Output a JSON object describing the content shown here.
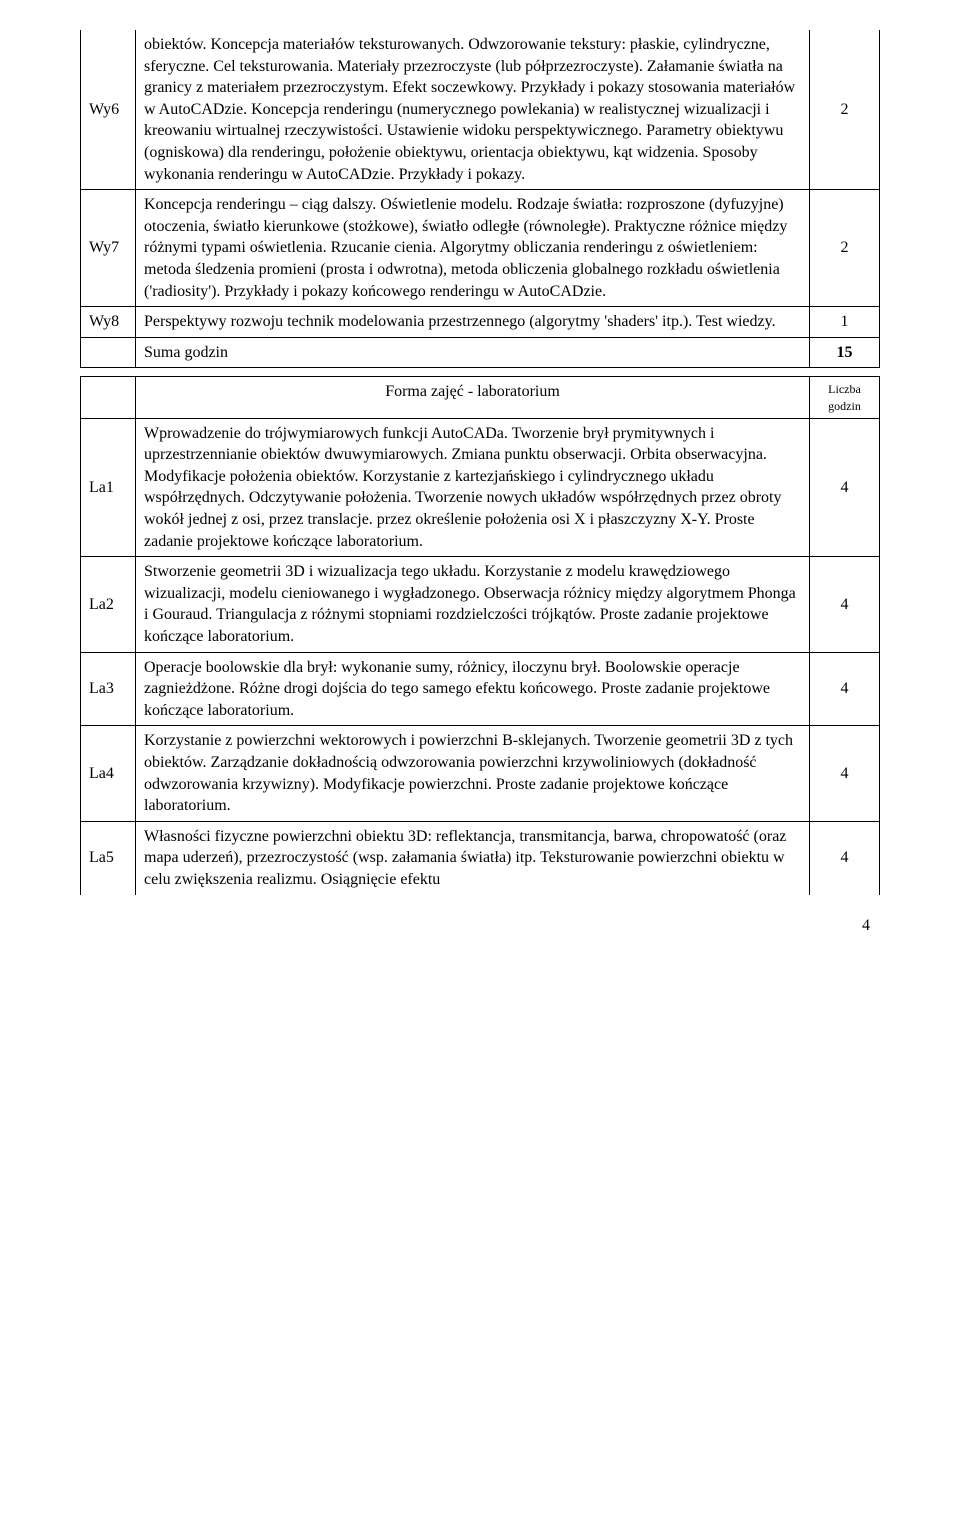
{
  "table1": {
    "rows": [
      {
        "label": "Wy6",
        "content": "obiektów. Koncepcja materiałów teksturowanych. Odwzorowanie tekstury: płaskie, cylindryczne, sferyczne. Cel teksturowania. Materiały przezroczyste (lub półprzezroczyste). Załamanie światła na granicy z materiałem przezroczystym. Efekt soczewkowy. Przykłady i pokazy stosowania materiałów w AutoCADzie.\nKoncepcja renderingu (numerycznego powlekania) w realistycznej wizualizacji i kreowaniu wirtualnej rzeczywistości. Ustawienie widoku perspektywicznego. Parametry obiektywu (ogniskowa) dla renderingu, położenie obiektywu, orientacja obiektywu, kąt widzenia. Sposoby wykonania renderingu w AutoCADzie. Przykłady i pokazy.",
        "hours": "2"
      },
      {
        "label": "Wy7",
        "content": "Koncepcja renderingu – ciąg dalszy. Oświetlenie modelu. Rodzaje światła: rozproszone (dyfuzyjne) otoczenia, światło kierunkowe (stożkowe), światło odległe (równoległe). Praktyczne różnice między różnymi typami oświetlenia. Rzucanie cienia. Algorytmy obliczania renderingu z oświetleniem: metoda śledzenia promieni (prosta i odwrotna), metoda obliczenia globalnego rozkładu oświetlenia ('radiosity'). Przykłady i pokazy końcowego renderingu w AutoCADzie.",
        "hours": "2"
      },
      {
        "label": "Wy8",
        "content": "Perspektywy rozwoju technik modelowania przestrzennego (algorytmy 'shaders' itp.). Test wiedzy.",
        "hours": "1"
      }
    ],
    "sumLabel": "Suma godzin",
    "sumValue": "15"
  },
  "table2": {
    "headerMain": "Forma zajęć - laboratorium",
    "headerHours": "Liczba godzin",
    "rows": [
      {
        "label": "La1",
        "content": "Wprowadzenie do trójwymiarowych funkcji AutoCADa. Tworzenie brył prymitywnych i uprzestrzennianie obiektów dwuwymiarowych. Zmiana punktu obserwacji. Orbita obserwacyjna. Modyfikacje położenia obiektów. Korzystanie z kartezjańskiego i cylindrycznego układu współrzędnych. Odczytywanie położenia. Tworzenie nowych układów współrzędnych przez obroty wokół jednej z osi, przez translacje. przez określenie położenia osi X i płaszczyzny X-Y. Proste zadanie projektowe kończące laboratorium.",
        "hours": "4"
      },
      {
        "label": "La2",
        "content": "Stworzenie geometrii 3D i wizualizacja tego układu. Korzystanie z modelu krawędziowego wizualizacji, modelu cieniowanego i wygładzonego. Obserwacja różnicy między algorytmem Phonga i Gouraud. Triangulacja z różnymi stopniami rozdzielczości trójkątów. Proste zadanie projektowe kończące laboratorium.",
        "hours": "4"
      },
      {
        "label": "La3",
        "content": "Operacje boolowskie dla brył: wykonanie sumy, różnicy, iloczynu brył. Boolowskie operacje zagnieżdżone. Różne drogi dojścia do tego samego efektu końcowego. Proste zadanie projektowe kończące laboratorium.",
        "hours": "4"
      },
      {
        "label": "La4",
        "content": "Korzystanie z powierzchni wektorowych i powierzchni B-sklejanych. Tworzenie geometrii 3D z tych obiektów. Zarządzanie dokładnością odwzorowania powierzchni krzywoliniowych (dokładność odwzorowania krzywizny). Modyfikacje powierzchni. Proste zadanie projektowe kończące laboratorium.",
        "hours": "4"
      },
      {
        "label": "La5",
        "content": "Własności fizyczne powierzchni obiektu 3D: reflektancja, transmitancja, barwa, chropowatość (oraz mapa uderzeń), przezroczystość (wsp. załamania światła) itp. Teksturowanie powierzchni obiektu w celu zwiększenia realizmu. Osiągnięcie efektu",
        "hours": "4"
      }
    ]
  },
  "pageNumber": "4"
}
